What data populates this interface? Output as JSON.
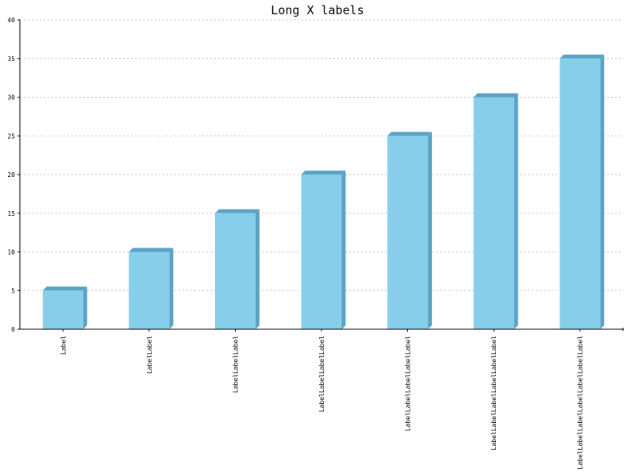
{
  "chart_data": {
    "type": "bar",
    "title": "Long X labels",
    "xlabel": "",
    "ylabel": "",
    "ylim": [
      0,
      40
    ],
    "yticks": [
      0,
      5,
      10,
      15,
      20,
      25,
      30,
      35,
      40
    ],
    "grid": true,
    "legend": "none",
    "categories": [
      "Label",
      "LabelLabel",
      "LabelLabelLabel",
      "LabelLabelLabelLabel",
      "LabelLabelLabelLabelLabel",
      "LabelLabelLabelLabelLabelLabel",
      "LabelLabelLabelLabelLabelLabelLabel"
    ],
    "values": [
      5,
      10,
      15,
      20,
      25,
      30,
      35
    ],
    "colors": {
      "bar_front": "#87ceeb",
      "bar_side": "#5ba3c4",
      "grid": "#bbbbbb",
      "axis": "#000000"
    }
  }
}
